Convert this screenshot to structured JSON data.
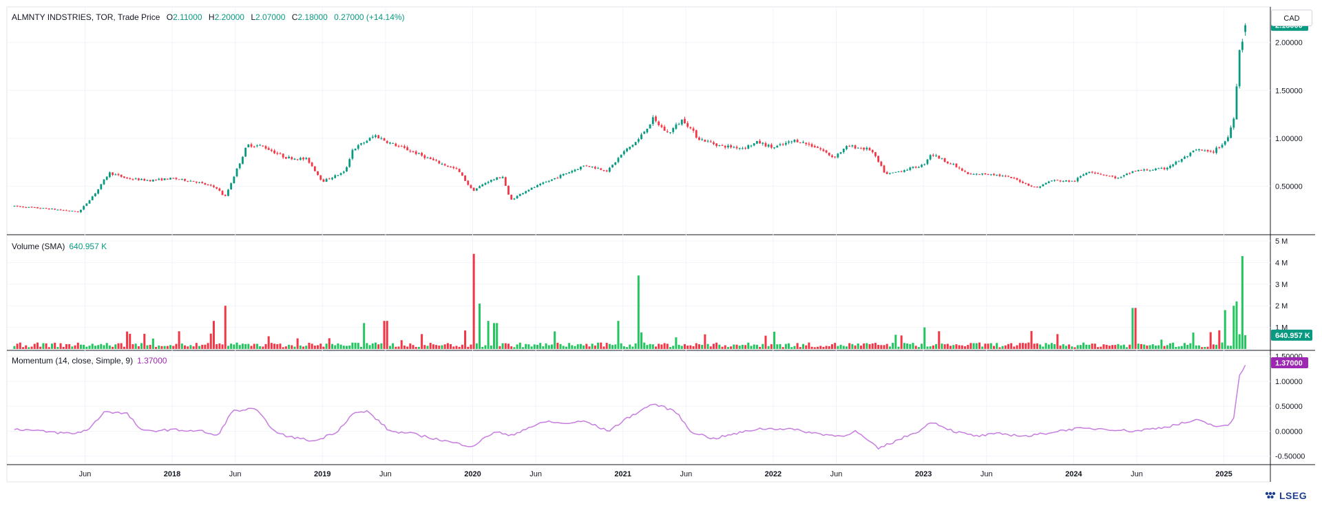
{
  "header": {
    "symbol": "ALMNTY INDSTRIES, TOR, Trade Price",
    "open_label": "O",
    "open": "2.11000",
    "high_label": "H",
    "high": "2.20000",
    "low_label": "L",
    "low": "2.07000",
    "close_label": "C",
    "close": "2.18000",
    "change": "0.27000 (+14.14%)",
    "currency": "CAD"
  },
  "volume_legend": {
    "label": "Volume (SMA)",
    "value": "640.957 K"
  },
  "momentum_legend": {
    "label": "Momentum (14, close, Simple, 9)",
    "value": "1.37000"
  },
  "price_axis": {
    "ticks": [
      0.5,
      1.0,
      1.5,
      2.0
    ],
    "tick_labels": [
      "0.50000",
      "1.00000",
      "1.50000",
      "2.00000"
    ],
    "last_price": "2.18000"
  },
  "volume_axis": {
    "ticks": [
      1,
      2,
      3,
      4,
      5
    ],
    "tick_labels": [
      "1 M",
      "2 M",
      "3 M",
      "4 M",
      "5 M"
    ],
    "last_value": "640.957 K"
  },
  "momentum_axis": {
    "ticks": [
      -0.5,
      0,
      0.5,
      1.0,
      1.5
    ],
    "tick_labels": [
      "-0.50000",
      "0.00000",
      "0.50000",
      "1.00000",
      "1.50000"
    ],
    "last_value": "1.37000"
  },
  "time_axis": [
    {
      "t": 2017.42,
      "label": "Jun"
    },
    {
      "t": 2018.0,
      "label": "2018"
    },
    {
      "t": 2018.42,
      "label": "Jun"
    },
    {
      "t": 2019.0,
      "label": "2019"
    },
    {
      "t": 2019.42,
      "label": "Jun"
    },
    {
      "t": 2020.0,
      "label": "2020"
    },
    {
      "t": 2020.42,
      "label": "Jun"
    },
    {
      "t": 2021.0,
      "label": "2021"
    },
    {
      "t": 2021.42,
      "label": "Jun"
    },
    {
      "t": 2022.0,
      "label": "2022"
    },
    {
      "t": 2022.42,
      "label": "Jun"
    },
    {
      "t": 2023.0,
      "label": "2023"
    },
    {
      "t": 2023.42,
      "label": "Jun"
    },
    {
      "t": 2024.0,
      "label": "2024"
    },
    {
      "t": 2024.42,
      "label": "Jun"
    },
    {
      "t": 2025.0,
      "label": "2025"
    }
  ],
  "brand": "LSEG",
  "colors": {
    "up": "#089981",
    "up_bright": "#22c55e",
    "down": "#f23645",
    "momentum": "#c77ddf",
    "momentum_badge": "#9c27b0",
    "grid": "#f0f3fa",
    "axis_text": "#131722"
  },
  "chart_data": {
    "type": "candlestick",
    "panes": [
      "price",
      "volume",
      "momentum"
    ],
    "x_range": [
      2016.9,
      2025.3
    ],
    "price_range": [
      0.0,
      2.3
    ],
    "volume_range_millions": [
      0,
      5
    ],
    "momentum_range": [
      -0.6,
      1.55
    ],
    "price_path": [
      [
        2016.95,
        0.29
      ],
      [
        2017.2,
        0.26
      ],
      [
        2017.38,
        0.23
      ],
      [
        2017.5,
        0.45
      ],
      [
        2017.58,
        0.64
      ],
      [
        2017.7,
        0.58
      ],
      [
        2017.85,
        0.56
      ],
      [
        2018.0,
        0.58
      ],
      [
        2018.15,
        0.55
      ],
      [
        2018.3,
        0.48
      ],
      [
        2018.35,
        0.38
      ],
      [
        2018.5,
        0.93
      ],
      [
        2018.6,
        0.92
      ],
      [
        2018.75,
        0.8
      ],
      [
        2018.9,
        0.78
      ],
      [
        2019.0,
        0.55
      ],
      [
        2019.15,
        0.65
      ],
      [
        2019.2,
        0.88
      ],
      [
        2019.35,
        1.03
      ],
      [
        2019.45,
        0.95
      ],
      [
        2019.6,
        0.86
      ],
      [
        2019.75,
        0.76
      ],
      [
        2019.9,
        0.67
      ],
      [
        2020.0,
        0.45
      ],
      [
        2020.1,
        0.55
      ],
      [
        2020.2,
        0.6
      ],
      [
        2020.25,
        0.35
      ],
      [
        2020.35,
        0.45
      ],
      [
        2020.5,
        0.55
      ],
      [
        2020.6,
        0.62
      ],
      [
        2020.75,
        0.72
      ],
      [
        2020.9,
        0.66
      ],
      [
        2021.0,
        0.85
      ],
      [
        2021.1,
        0.98
      ],
      [
        2021.2,
        1.2
      ],
      [
        2021.3,
        1.05
      ],
      [
        2021.4,
        1.2
      ],
      [
        2021.5,
        1.0
      ],
      [
        2021.65,
        0.92
      ],
      [
        2021.8,
        0.9
      ],
      [
        2021.9,
        0.96
      ],
      [
        2022.0,
        0.9
      ],
      [
        2022.15,
        0.98
      ],
      [
        2022.3,
        0.9
      ],
      [
        2022.4,
        0.8
      ],
      [
        2022.5,
        0.92
      ],
      [
        2022.65,
        0.88
      ],
      [
        2022.75,
        0.62
      ],
      [
        2022.85,
        0.66
      ],
      [
        2023.0,
        0.72
      ],
      [
        2023.05,
        0.84
      ],
      [
        2023.2,
        0.72
      ],
      [
        2023.3,
        0.62
      ],
      [
        2023.45,
        0.63
      ],
      [
        2023.6,
        0.58
      ],
      [
        2023.75,
        0.48
      ],
      [
        2023.85,
        0.56
      ],
      [
        2024.0,
        0.55
      ],
      [
        2024.1,
        0.66
      ],
      [
        2024.2,
        0.62
      ],
      [
        2024.3,
        0.58
      ],
      [
        2024.4,
        0.66
      ],
      [
        2024.5,
        0.67
      ],
      [
        2024.6,
        0.68
      ],
      [
        2024.72,
        0.78
      ],
      [
        2024.82,
        0.88
      ],
      [
        2024.92,
        0.85
      ],
      [
        2025.0,
        0.95
      ],
      [
        2025.03,
        1.02
      ],
      [
        2025.07,
        1.25
      ],
      [
        2025.1,
        1.9
      ],
      [
        2025.15,
        2.18
      ]
    ],
    "volume_spikes_millions": [
      [
        2018.35,
        2.0
      ],
      [
        2018.28,
        1.3
      ],
      [
        2019.27,
        1.2
      ],
      [
        2019.42,
        1.3
      ],
      [
        2020.0,
        4.4
      ],
      [
        2020.05,
        2.1
      ],
      [
        2020.1,
        1.3
      ],
      [
        2020.15,
        1.2
      ],
      [
        2020.97,
        1.3
      ],
      [
        2021.1,
        3.4
      ],
      [
        2022.0,
        0.8
      ],
      [
        2023.0,
        1.0
      ],
      [
        2024.4,
        1.9
      ],
      [
        2025.0,
        1.8
      ],
      [
        2025.06,
        2.0
      ],
      [
        2025.09,
        2.2
      ],
      [
        2025.12,
        4.3
      ],
      [
        2025.15,
        0.64
      ]
    ],
    "momentum_path": [
      [
        2016.95,
        0.05
      ],
      [
        2017.2,
        -0.02
      ],
      [
        2017.35,
        -0.05
      ],
      [
        2017.45,
        0.05
      ],
      [
        2017.55,
        0.4
      ],
      [
        2017.7,
        0.35
      ],
      [
        2017.8,
        0.0
      ],
      [
        2018.0,
        0.03
      ],
      [
        2018.2,
        0.0
      ],
      [
        2018.3,
        -0.1
      ],
      [
        2018.4,
        0.4
      ],
      [
        2018.55,
        0.45
      ],
      [
        2018.7,
        -0.05
      ],
      [
        2018.8,
        -0.12
      ],
      [
        2018.95,
        -0.2
      ],
      [
        2019.1,
        0.0
      ],
      [
        2019.2,
        0.35
      ],
      [
        2019.3,
        0.4
      ],
      [
        2019.45,
        0.0
      ],
      [
        2019.6,
        -0.05
      ],
      [
        2019.75,
        -0.15
      ],
      [
        2019.9,
        -0.25
      ],
      [
        2020.0,
        -0.3
      ],
      [
        2020.15,
        0.0
      ],
      [
        2020.25,
        -0.1
      ],
      [
        2020.35,
        0.05
      ],
      [
        2020.5,
        0.2
      ],
      [
        2020.6,
        0.15
      ],
      [
        2020.75,
        0.2
      ],
      [
        2020.9,
        0.0
      ],
      [
        2021.05,
        0.3
      ],
      [
        2021.2,
        0.55
      ],
      [
        2021.35,
        0.4
      ],
      [
        2021.45,
        0.0
      ],
      [
        2021.6,
        -0.15
      ],
      [
        2021.75,
        -0.05
      ],
      [
        2021.9,
        0.05
      ],
      [
        2022.1,
        0.05
      ],
      [
        2022.3,
        -0.05
      ],
      [
        2022.45,
        -0.1
      ],
      [
        2022.55,
        0.0
      ],
      [
        2022.7,
        -0.35
      ],
      [
        2022.85,
        -0.15
      ],
      [
        2023.0,
        0.05
      ],
      [
        2023.05,
        0.2
      ],
      [
        2023.2,
        0.0
      ],
      [
        2023.35,
        -0.1
      ],
      [
        2023.5,
        -0.05
      ],
      [
        2023.7,
        -0.1
      ],
      [
        2023.85,
        -0.02
      ],
      [
        2024.0,
        0.05
      ],
      [
        2024.2,
        0.05
      ],
      [
        2024.4,
        0.0
      ],
      [
        2024.6,
        0.08
      ],
      [
        2024.82,
        0.22
      ],
      [
        2024.95,
        0.1
      ],
      [
        2025.03,
        0.1
      ],
      [
        2025.07,
        0.3
      ],
      [
        2025.1,
        1.1
      ],
      [
        2025.15,
        1.37
      ]
    ]
  }
}
